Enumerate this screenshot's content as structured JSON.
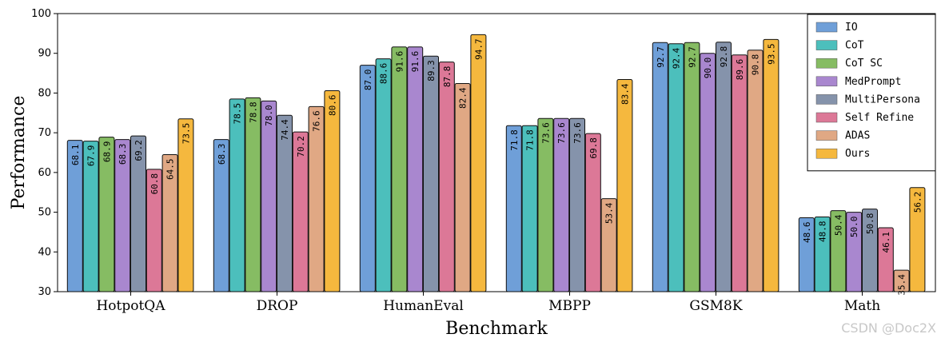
{
  "chart_data": {
    "type": "bar",
    "xlabel": "Benchmark",
    "ylabel": "Performance",
    "ylim": [
      30,
      100
    ],
    "yticks": [
      30,
      40,
      50,
      60,
      70,
      80,
      90,
      100
    ],
    "grid": false,
    "legend_position": "top-right",
    "categories": [
      "HotpotQA",
      "DROP",
      "HumanEval",
      "MBPP",
      "GSM8K",
      "Math"
    ],
    "series": [
      {
        "name": "IO",
        "color": "#6f9fd8",
        "values": [
          68.1,
          68.3,
          87.0,
          71.8,
          92.7,
          48.6
        ]
      },
      {
        "name": "CoT",
        "color": "#4cbfbc",
        "values": [
          67.9,
          78.5,
          88.6,
          71.8,
          92.4,
          48.8
        ]
      },
      {
        "name": "CoT SC",
        "color": "#86bc63",
        "values": [
          68.9,
          78.8,
          91.6,
          73.6,
          92.7,
          50.4
        ]
      },
      {
        "name": "MedPrompt",
        "color": "#a987cf",
        "values": [
          68.3,
          78.0,
          91.6,
          73.6,
          90.0,
          50.0
        ]
      },
      {
        "name": "MultiPersona",
        "color": "#8593ab",
        "values": [
          69.2,
          74.4,
          89.3,
          73.6,
          92.8,
          50.8
        ]
      },
      {
        "name": "Self Refine",
        "color": "#dc7897",
        "values": [
          60.8,
          70.2,
          87.8,
          69.8,
          89.6,
          46.1
        ]
      },
      {
        "name": "ADAS",
        "color": "#e0a884",
        "values": [
          64.5,
          76.6,
          82.4,
          53.4,
          90.8,
          35.4
        ]
      },
      {
        "name": "Ours",
        "color": "#f5b83e",
        "values": [
          73.5,
          80.6,
          94.7,
          83.4,
          93.5,
          56.2
        ]
      }
    ]
  },
  "watermark": "CSDN @Doc2X"
}
